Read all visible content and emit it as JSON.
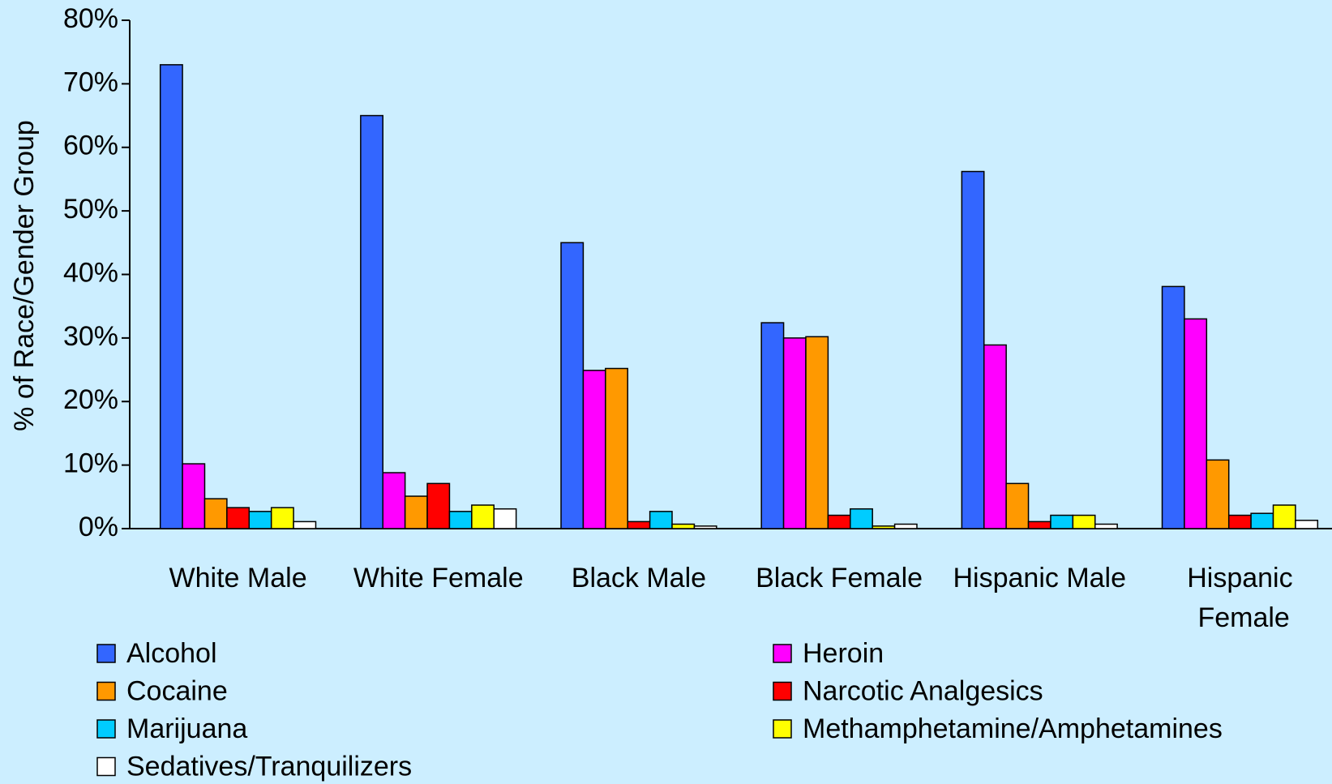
{
  "chart_data": {
    "type": "bar",
    "y_label": "% of Race/Gender Group",
    "categories": [
      "White Male",
      "White Female",
      "Black Male",
      "Black Female",
      "Hispanic Male",
      "Hispanic Female"
    ],
    "series": [
      {
        "name": "Alcohol",
        "color": "#3366ff",
        "values": [
          73,
          65,
          45,
          32.4,
          56.2,
          38.1
        ]
      },
      {
        "name": "Heroin",
        "color": "#ff00ff",
        "values": [
          10.2,
          8.8,
          24.9,
          30,
          28.9,
          33
        ]
      },
      {
        "name": "Cocaine",
        "color": "#ff9900",
        "values": [
          4.7,
          5.1,
          25.2,
          30.2,
          7.1,
          10.8
        ]
      },
      {
        "name": "Narcotic Analgesics",
        "color": "#ff0000",
        "values": [
          3.3,
          7.1,
          1.1,
          2.1,
          1.1,
          2.1
        ]
      },
      {
        "name": "Marijuana",
        "color": "#00ccff",
        "values": [
          2.7,
          2.7,
          2.7,
          3.1,
          2.1,
          2.4
        ]
      },
      {
        "name": "Methamphetamine/Amphetamines",
        "color": "#ffff00",
        "values": [
          3.3,
          3.7,
          0.7,
          0.4,
          2.1,
          3.7
        ]
      },
      {
        "name": "Sedatives/Tranquilizers",
        "color": "#ffffff",
        "values": [
          1.1,
          3.1,
          0.4,
          0.7,
          0.7,
          1.3
        ]
      }
    ],
    "ylim": [
      0,
      80
    ],
    "yticks": [
      {
        "value": 0,
        "label": "0%"
      },
      {
        "value": 10,
        "label": "10%"
      },
      {
        "value": 20,
        "label": "20%"
      },
      {
        "value": 30,
        "label": "30%"
      },
      {
        "value": 40,
        "label": "40%"
      },
      {
        "value": 50,
        "label": "50%"
      },
      {
        "value": 60,
        "label": "60%"
      },
      {
        "value": 70,
        "label": "70%"
      },
      {
        "value": 80,
        "label": "80%"
      }
    ]
  }
}
